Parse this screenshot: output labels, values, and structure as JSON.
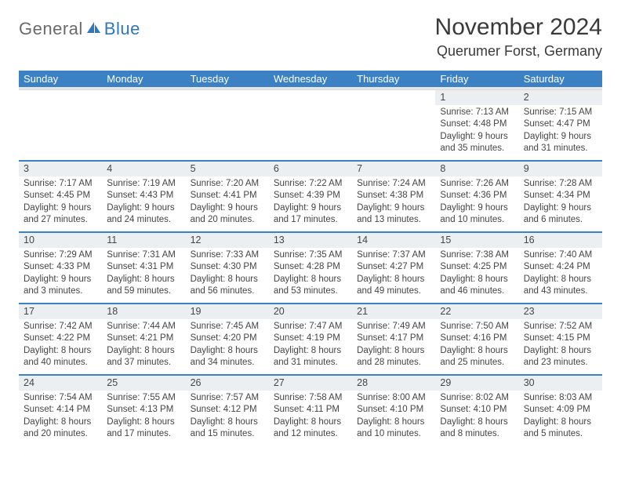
{
  "brand": {
    "general": "General",
    "blue": "Blue"
  },
  "title": "November 2024",
  "location": "Querumer Forst, Germany",
  "colors": {
    "header_bar": "#3b81c3",
    "brand_blue": "#2f77bb",
    "brand_gray": "#6a6a6a",
    "daynum_bg": "#eceff1",
    "week_border": "#3b81c3",
    "text": "#444444",
    "background": "#ffffff"
  },
  "weekdays": [
    "Sunday",
    "Monday",
    "Tuesday",
    "Wednesday",
    "Thursday",
    "Friday",
    "Saturday"
  ],
  "weeks": [
    [
      {
        "day": "",
        "sunrise": "",
        "sunset": "",
        "daylight": ""
      },
      {
        "day": "",
        "sunrise": "",
        "sunset": "",
        "daylight": ""
      },
      {
        "day": "",
        "sunrise": "",
        "sunset": "",
        "daylight": ""
      },
      {
        "day": "",
        "sunrise": "",
        "sunset": "",
        "daylight": ""
      },
      {
        "day": "",
        "sunrise": "",
        "sunset": "",
        "daylight": ""
      },
      {
        "day": "1",
        "sunrise": "Sunrise: 7:13 AM",
        "sunset": "Sunset: 4:48 PM",
        "daylight": "Daylight: 9 hours and 35 minutes."
      },
      {
        "day": "2",
        "sunrise": "Sunrise: 7:15 AM",
        "sunset": "Sunset: 4:47 PM",
        "daylight": "Daylight: 9 hours and 31 minutes."
      }
    ],
    [
      {
        "day": "3",
        "sunrise": "Sunrise: 7:17 AM",
        "sunset": "Sunset: 4:45 PM",
        "daylight": "Daylight: 9 hours and 27 minutes."
      },
      {
        "day": "4",
        "sunrise": "Sunrise: 7:19 AM",
        "sunset": "Sunset: 4:43 PM",
        "daylight": "Daylight: 9 hours and 24 minutes."
      },
      {
        "day": "5",
        "sunrise": "Sunrise: 7:20 AM",
        "sunset": "Sunset: 4:41 PM",
        "daylight": "Daylight: 9 hours and 20 minutes."
      },
      {
        "day": "6",
        "sunrise": "Sunrise: 7:22 AM",
        "sunset": "Sunset: 4:39 PM",
        "daylight": "Daylight: 9 hours and 17 minutes."
      },
      {
        "day": "7",
        "sunrise": "Sunrise: 7:24 AM",
        "sunset": "Sunset: 4:38 PM",
        "daylight": "Daylight: 9 hours and 13 minutes."
      },
      {
        "day": "8",
        "sunrise": "Sunrise: 7:26 AM",
        "sunset": "Sunset: 4:36 PM",
        "daylight": "Daylight: 9 hours and 10 minutes."
      },
      {
        "day": "9",
        "sunrise": "Sunrise: 7:28 AM",
        "sunset": "Sunset: 4:34 PM",
        "daylight": "Daylight: 9 hours and 6 minutes."
      }
    ],
    [
      {
        "day": "10",
        "sunrise": "Sunrise: 7:29 AM",
        "sunset": "Sunset: 4:33 PM",
        "daylight": "Daylight: 9 hours and 3 minutes."
      },
      {
        "day": "11",
        "sunrise": "Sunrise: 7:31 AM",
        "sunset": "Sunset: 4:31 PM",
        "daylight": "Daylight: 8 hours and 59 minutes."
      },
      {
        "day": "12",
        "sunrise": "Sunrise: 7:33 AM",
        "sunset": "Sunset: 4:30 PM",
        "daylight": "Daylight: 8 hours and 56 minutes."
      },
      {
        "day": "13",
        "sunrise": "Sunrise: 7:35 AM",
        "sunset": "Sunset: 4:28 PM",
        "daylight": "Daylight: 8 hours and 53 minutes."
      },
      {
        "day": "14",
        "sunrise": "Sunrise: 7:37 AM",
        "sunset": "Sunset: 4:27 PM",
        "daylight": "Daylight: 8 hours and 49 minutes."
      },
      {
        "day": "15",
        "sunrise": "Sunrise: 7:38 AM",
        "sunset": "Sunset: 4:25 PM",
        "daylight": "Daylight: 8 hours and 46 minutes."
      },
      {
        "day": "16",
        "sunrise": "Sunrise: 7:40 AM",
        "sunset": "Sunset: 4:24 PM",
        "daylight": "Daylight: 8 hours and 43 minutes."
      }
    ],
    [
      {
        "day": "17",
        "sunrise": "Sunrise: 7:42 AM",
        "sunset": "Sunset: 4:22 PM",
        "daylight": "Daylight: 8 hours and 40 minutes."
      },
      {
        "day": "18",
        "sunrise": "Sunrise: 7:44 AM",
        "sunset": "Sunset: 4:21 PM",
        "daylight": "Daylight: 8 hours and 37 minutes."
      },
      {
        "day": "19",
        "sunrise": "Sunrise: 7:45 AM",
        "sunset": "Sunset: 4:20 PM",
        "daylight": "Daylight: 8 hours and 34 minutes."
      },
      {
        "day": "20",
        "sunrise": "Sunrise: 7:47 AM",
        "sunset": "Sunset: 4:19 PM",
        "daylight": "Daylight: 8 hours and 31 minutes."
      },
      {
        "day": "21",
        "sunrise": "Sunrise: 7:49 AM",
        "sunset": "Sunset: 4:17 PM",
        "daylight": "Daylight: 8 hours and 28 minutes."
      },
      {
        "day": "22",
        "sunrise": "Sunrise: 7:50 AM",
        "sunset": "Sunset: 4:16 PM",
        "daylight": "Daylight: 8 hours and 25 minutes."
      },
      {
        "day": "23",
        "sunrise": "Sunrise: 7:52 AM",
        "sunset": "Sunset: 4:15 PM",
        "daylight": "Daylight: 8 hours and 23 minutes."
      }
    ],
    [
      {
        "day": "24",
        "sunrise": "Sunrise: 7:54 AM",
        "sunset": "Sunset: 4:14 PM",
        "daylight": "Daylight: 8 hours and 20 minutes."
      },
      {
        "day": "25",
        "sunrise": "Sunrise: 7:55 AM",
        "sunset": "Sunset: 4:13 PM",
        "daylight": "Daylight: 8 hours and 17 minutes."
      },
      {
        "day": "26",
        "sunrise": "Sunrise: 7:57 AM",
        "sunset": "Sunset: 4:12 PM",
        "daylight": "Daylight: 8 hours and 15 minutes."
      },
      {
        "day": "27",
        "sunrise": "Sunrise: 7:58 AM",
        "sunset": "Sunset: 4:11 PM",
        "daylight": "Daylight: 8 hours and 12 minutes."
      },
      {
        "day": "28",
        "sunrise": "Sunrise: 8:00 AM",
        "sunset": "Sunset: 4:10 PM",
        "daylight": "Daylight: 8 hours and 10 minutes."
      },
      {
        "day": "29",
        "sunrise": "Sunrise: 8:02 AM",
        "sunset": "Sunset: 4:10 PM",
        "daylight": "Daylight: 8 hours and 8 minutes."
      },
      {
        "day": "30",
        "sunrise": "Sunrise: 8:03 AM",
        "sunset": "Sunset: 4:09 PM",
        "daylight": "Daylight: 8 hours and 5 minutes."
      }
    ]
  ]
}
